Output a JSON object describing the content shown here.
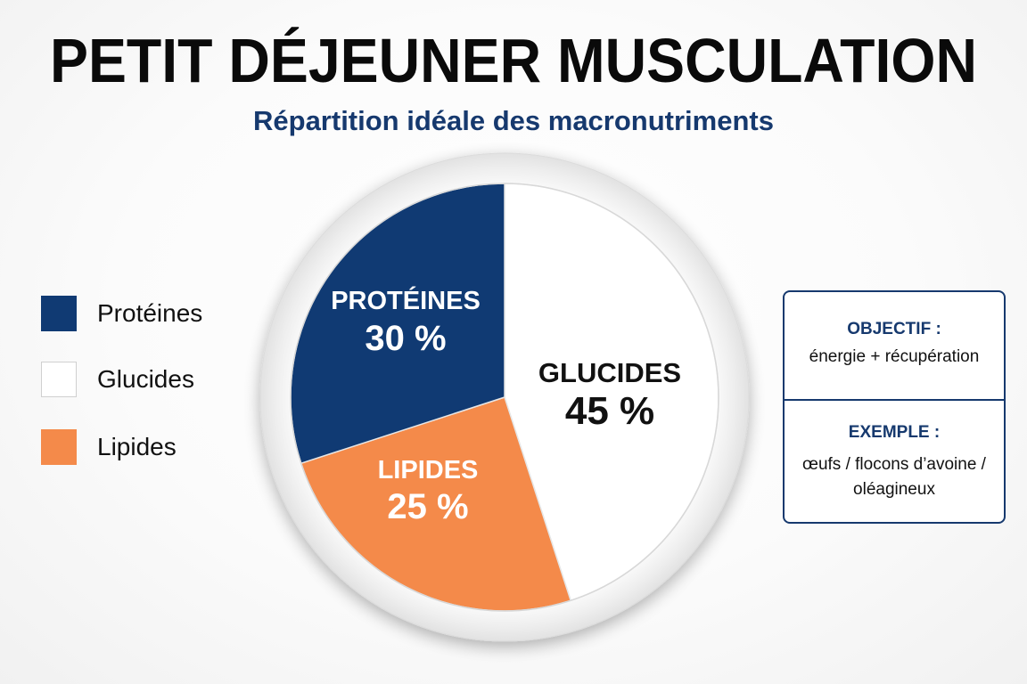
{
  "title": "PETIT DÉJEUNER MUSCULATION",
  "subtitle": "Répartition idéale des macronutriments",
  "colors": {
    "proteines": "#103a73",
    "glucides": "#ffffff",
    "lipides": "#f48a4a",
    "accent": "#16396e"
  },
  "chart_data": {
    "type": "pie",
    "unit": "%",
    "slices": [
      {
        "label": "GLUCIDES",
        "value": 45,
        "value_label": "45 %",
        "color": "#ffffff",
        "text_color": "#111111"
      },
      {
        "label": "LIPIDES",
        "value": 25,
        "value_label": "25 %",
        "color": "#f48a4a",
        "text_color": "#ffffff"
      },
      {
        "label": "PROTÉINES",
        "value": 30,
        "value_label": "30 %",
        "color": "#103a73",
        "text_color": "#ffffff"
      }
    ],
    "legend": [
      {
        "label": "Protéines",
        "color": "#103a73"
      },
      {
        "label": "Glucides",
        "color": "#ffffff"
      },
      {
        "label": "Lipides",
        "color": "#f48a4a"
      }
    ],
    "legend_placement": "left"
  },
  "info": {
    "objectif_heading": "OBJECTIF :",
    "objectif_text": "énergie + récupération",
    "exemple_heading": "EXEMPLE :",
    "exemple_line1": "œufs / flocons d’avoine /",
    "exemple_line2": "oléagineux"
  }
}
